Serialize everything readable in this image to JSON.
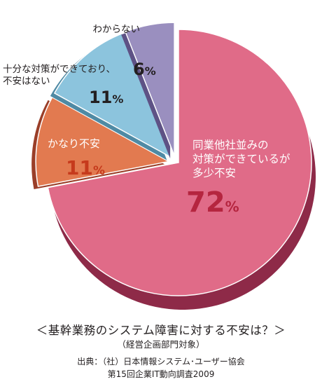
{
  "chart_data": {
    "type": "pie",
    "title": "＜基幹業務のシステム障害に対する不安は？＞",
    "subtitle": "（経営企画部門対象）",
    "slices": [
      {
        "label_lines": [
          "同業他社並みの",
          "対策ができているが",
          "多少不安"
        ],
        "value": 72,
        "value_label": "72",
        "color": "#e06b88",
        "side": "#8e2a48",
        "label_color": "#ffffff",
        "pct_color": "#b5253f"
      },
      {
        "label_lines": [
          "かなり不安"
        ],
        "value": 11,
        "value_label": "11",
        "color": "#e27a50",
        "side": "#9a3e28",
        "label_color": "#ffffff",
        "pct_color": "#c63a1c"
      },
      {
        "label_lines": [
          "十分な対策ができており、",
          "不安はない"
        ],
        "value": 11,
        "value_label": "11",
        "color": "#8cc4dd",
        "side": "#4f8aa4",
        "label_color": "#231f20",
        "pct_color": "#231f20"
      },
      {
        "label_lines": [
          "わからない"
        ],
        "value": 6,
        "value_label": "6",
        "color": "#9a8fbf",
        "side": "#5e5285",
        "label_color": "#231f20",
        "pct_color": "#231f20"
      }
    ],
    "percent_sign": "%",
    "source_lines": [
      "出典：（社）日本情報システム･ユーザー協会",
      "第15回企業IT動向調査2009"
    ]
  }
}
